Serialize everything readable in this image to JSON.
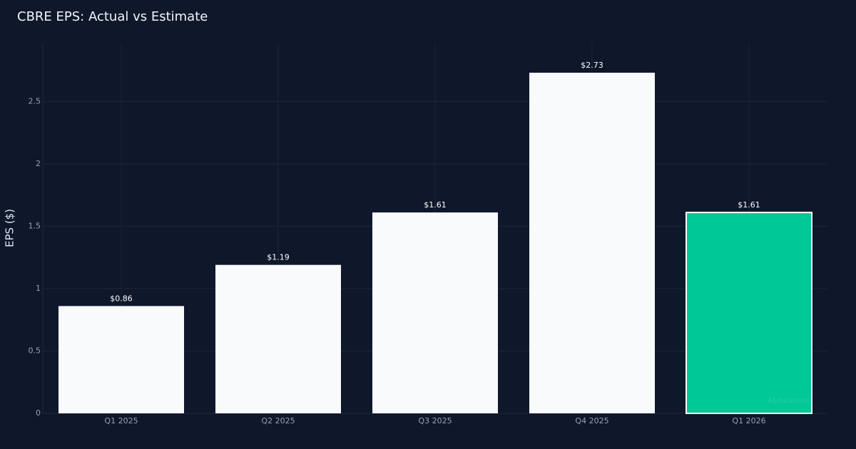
{
  "chart_data": {
    "type": "bar",
    "title": "CBRE EPS: Actual vs Estimate",
    "y_label": "EPS ($)",
    "categories": [
      "Q1 2025",
      "Q2 2025",
      "Q3 2025",
      "Q4 2025",
      "Q1 2026"
    ],
    "values": [
      0.86,
      1.19,
      1.61,
      2.73,
      1.61
    ],
    "value_labels": [
      "$0.86",
      "$1.19",
      "$1.61",
      "$2.73",
      "$1.61"
    ],
    "colors": [
      "#f8fafc",
      "#f8fafc",
      "#f8fafc",
      "#f8fafc",
      "#00c896"
    ],
    "ylim": [
      0,
      2.97
    ],
    "yticks": [
      0,
      0.5,
      1,
      1.5,
      2,
      2.5
    ],
    "grid": true,
    "watermark": "AlphaStreet"
  }
}
